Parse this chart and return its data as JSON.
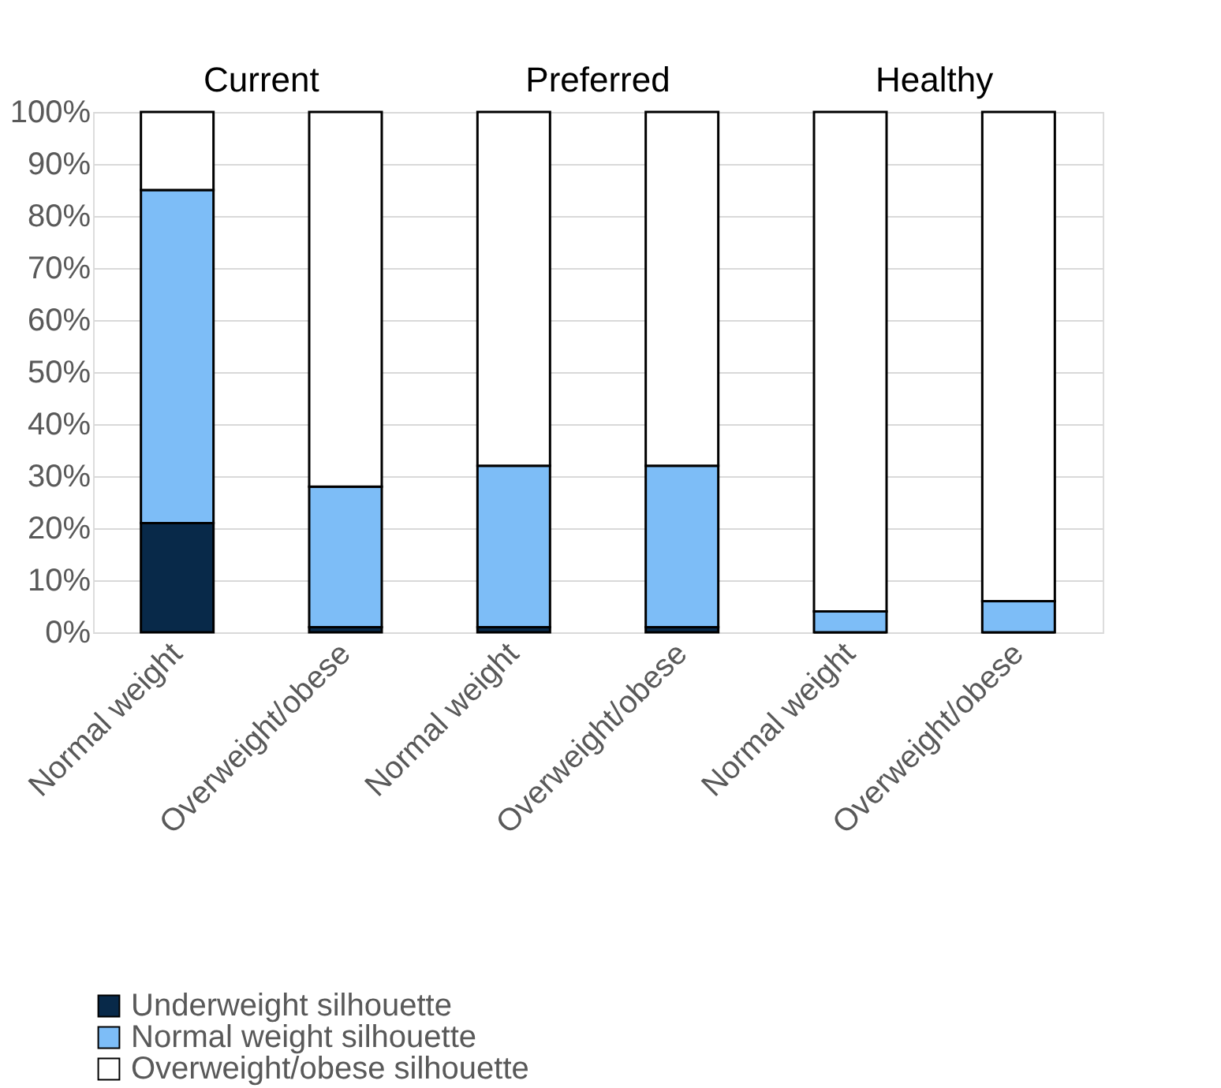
{
  "chart_data": {
    "type": "bar",
    "stacked": true,
    "categories": [
      "Normal weight",
      "Overweight/obese",
      "Normal weight",
      "Overweight/obese",
      "Normal weight",
      "Overweight/obese"
    ],
    "annotations": [
      "Current",
      "Preferred",
      "Healthy"
    ],
    "series": [
      {
        "name": "Underweight silhouette",
        "color": "#082949",
        "values": [
          21,
          1,
          1,
          1,
          0,
          0
        ]
      },
      {
        "name": "Normal weight silhouette",
        "color": "#7dbdf7",
        "values": [
          64,
          27,
          31,
          31,
          4,
          6
        ]
      },
      {
        "name": "Overweight/obese silhouette",
        "color": "#ffffff",
        "values": [
          15,
          72,
          68,
          68,
          96,
          94
        ]
      }
    ],
    "ylim": [
      0,
      100
    ],
    "yticks": [
      {
        "value": 0,
        "label": "0%"
      },
      {
        "value": 10,
        "label": "10%"
      },
      {
        "value": 20,
        "label": "20%"
      },
      {
        "value": 30,
        "label": "30%"
      },
      {
        "value": 40,
        "label": "40%"
      },
      {
        "value": 50,
        "label": "50%"
      },
      {
        "value": 60,
        "label": "60%"
      },
      {
        "value": 70,
        "label": "70%"
      },
      {
        "value": 80,
        "label": "80%"
      },
      {
        "value": 90,
        "label": "90%"
      },
      {
        "value": 100,
        "label": "100%"
      }
    ],
    "grid": "y",
    "legend": "bottom"
  }
}
